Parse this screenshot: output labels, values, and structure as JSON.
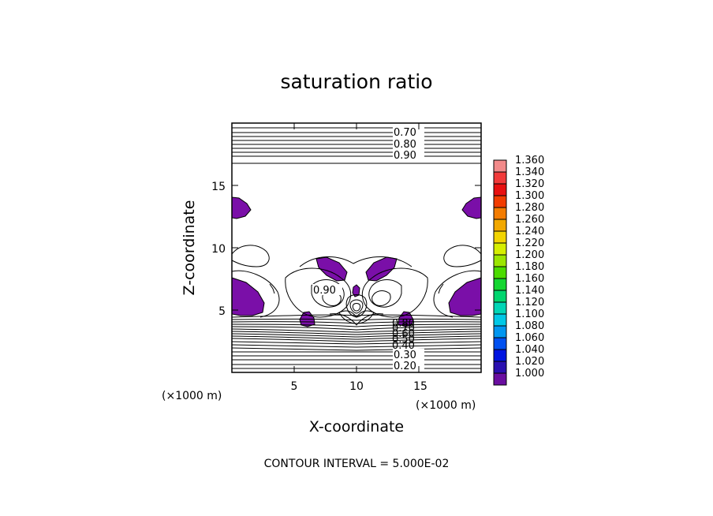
{
  "chart_data": {
    "type": "contour",
    "title": "saturation ratio",
    "xlabel": "X-coordinate",
    "ylabel": "Z-coordinate",
    "x_unit": "(×1000 m)",
    "z_unit": "(×1000 m)",
    "xlim": [
      0,
      20
    ],
    "ylim": [
      0,
      20
    ],
    "x_ticks": [
      5,
      10,
      15
    ],
    "y_ticks": [
      5,
      10,
      15
    ],
    "contour_interval_label": "CONTOUR INTERVAL = 5.000E-02",
    "contour_labels": [
      "0.70",
      "0.80",
      "0.90",
      "0.90",
      "0.20",
      "0.30",
      "0.40",
      "0.50",
      "0.60",
      "0.70",
      "0.80"
    ],
    "fill_threshold": 1.0,
    "fill_color": "#7a0fa8",
    "colorbar": {
      "levels": [
        "1.360",
        "1.340",
        "1.320",
        "1.300",
        "1.280",
        "1.260",
        "1.240",
        "1.220",
        "1.200",
        "1.180",
        "1.160",
        "1.140",
        "1.120",
        "1.100",
        "1.080",
        "1.060",
        "1.040",
        "1.020",
        "1.000"
      ],
      "colors": [
        "#f28a8a",
        "#f23a3a",
        "#e81010",
        "#f23c00",
        "#f47c00",
        "#f2a800",
        "#f2d400",
        "#d6ee00",
        "#9ce600",
        "#4cdc00",
        "#14d630",
        "#00d66e",
        "#00d6b6",
        "#00c8e6",
        "#0096f0",
        "#0050f0",
        "#0014e0",
        "#2a10b0",
        "#6a0ea0"
      ]
    }
  }
}
